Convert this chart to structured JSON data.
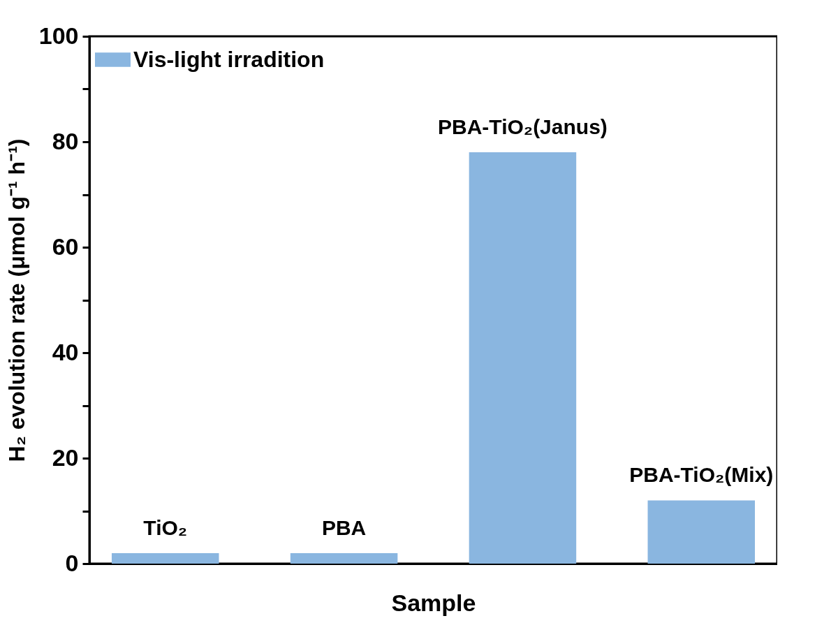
{
  "chart_data": {
    "type": "bar",
    "xlabel": "Sample",
    "ylabel": "H₂ evolution rate (μmol g⁻¹ h⁻¹)",
    "categories": [
      "TiO₂",
      "PBA",
      "PBA-TiO₂(Janus)",
      "PBA-TiO₂(Mix)"
    ],
    "series": [
      {
        "name": "Vis-light irradition",
        "color": "#8ab6e0",
        "values": [
          2,
          2,
          78,
          12
        ]
      }
    ],
    "ylim": [
      0,
      100
    ],
    "yticks": [
      0,
      {
        "value": 10,
        "label": null
      },
      20,
      {
        "value": 30,
        "label": null
      },
      40,
      {
        "value": 50,
        "label": null
      },
      60,
      {
        "value": 70,
        "label": null
      },
      80,
      {
        "value": 90,
        "label": null
      },
      100
    ],
    "tick_labels": "y",
    "legend": "top left",
    "grid": false
  }
}
